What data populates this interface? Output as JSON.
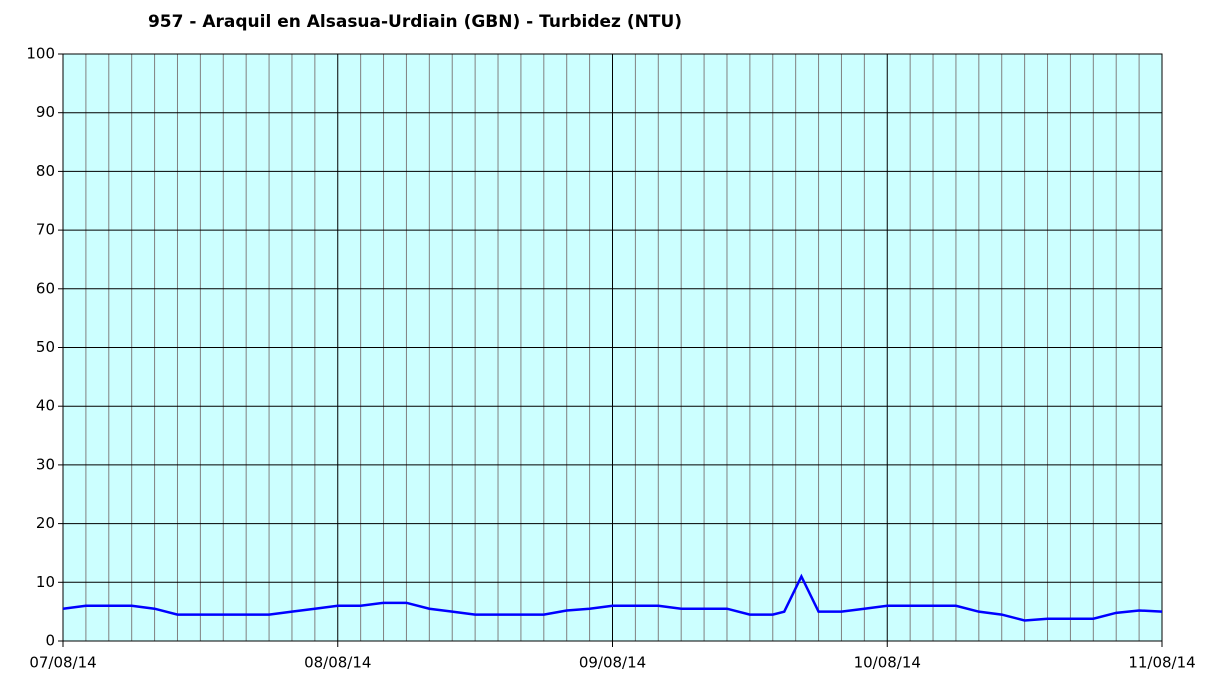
{
  "chart_data": {
    "type": "line",
    "title": "957 - Araquil en Alsasua-Urdiain (GBN) - Turbidez (NTU)",
    "x": [
      0,
      2,
      4,
      6,
      8,
      10,
      12,
      14,
      16,
      18,
      20,
      22,
      24,
      26,
      28,
      30,
      32,
      34,
      36,
      38,
      40,
      42,
      44,
      46,
      48,
      50,
      52,
      54,
      56,
      58,
      60,
      62,
      63,
      64.5,
      66,
      68,
      70,
      72,
      74,
      76,
      78,
      80,
      82,
      84,
      86,
      88,
      90,
      92,
      94,
      96
    ],
    "series": [
      {
        "name": "Turbidez",
        "color": "#0000ff",
        "values": [
          5.5,
          6,
          6,
          6,
          5.5,
          4.5,
          4.5,
          4.5,
          4.5,
          4.5,
          5,
          5.5,
          6,
          6,
          6.5,
          6.5,
          5.5,
          5,
          4.5,
          4.5,
          4.5,
          4.5,
          5.2,
          5.5,
          6,
          6,
          6,
          5.5,
          5.5,
          5.5,
          4.5,
          4.5,
          5,
          11,
          5,
          5,
          5.5,
          6,
          6,
          6,
          6,
          5,
          4.5,
          3.5,
          3.8,
          3.8,
          3.8,
          4.8,
          5.2,
          5
        ]
      }
    ],
    "xlim": [
      0,
      96
    ],
    "xticks": [
      {
        "value": 0,
        "label": "07/08/14"
      },
      {
        "value": 24,
        "label": "08/08/14"
      },
      {
        "value": 48,
        "label": "09/08/14"
      },
      {
        "value": 72,
        "label": "10/08/14"
      },
      {
        "value": 96,
        "label": "11/08/14"
      }
    ],
    "xminorticks": [
      2,
      4,
      6,
      8,
      10,
      12,
      14,
      16,
      18,
      20,
      22,
      26,
      28,
      30,
      32,
      34,
      36,
      38,
      40,
      42,
      44,
      46,
      50,
      52,
      54,
      56,
      58,
      60,
      62,
      64,
      66,
      68,
      70,
      74,
      76,
      78,
      80,
      82,
      84,
      86,
      88,
      90,
      92,
      94
    ],
    "ylim": [
      0,
      100
    ],
    "yticks": [
      0,
      10,
      20,
      30,
      40,
      50,
      60,
      70,
      80,
      90,
      100
    ],
    "grid": true,
    "background": "#ccffff"
  }
}
